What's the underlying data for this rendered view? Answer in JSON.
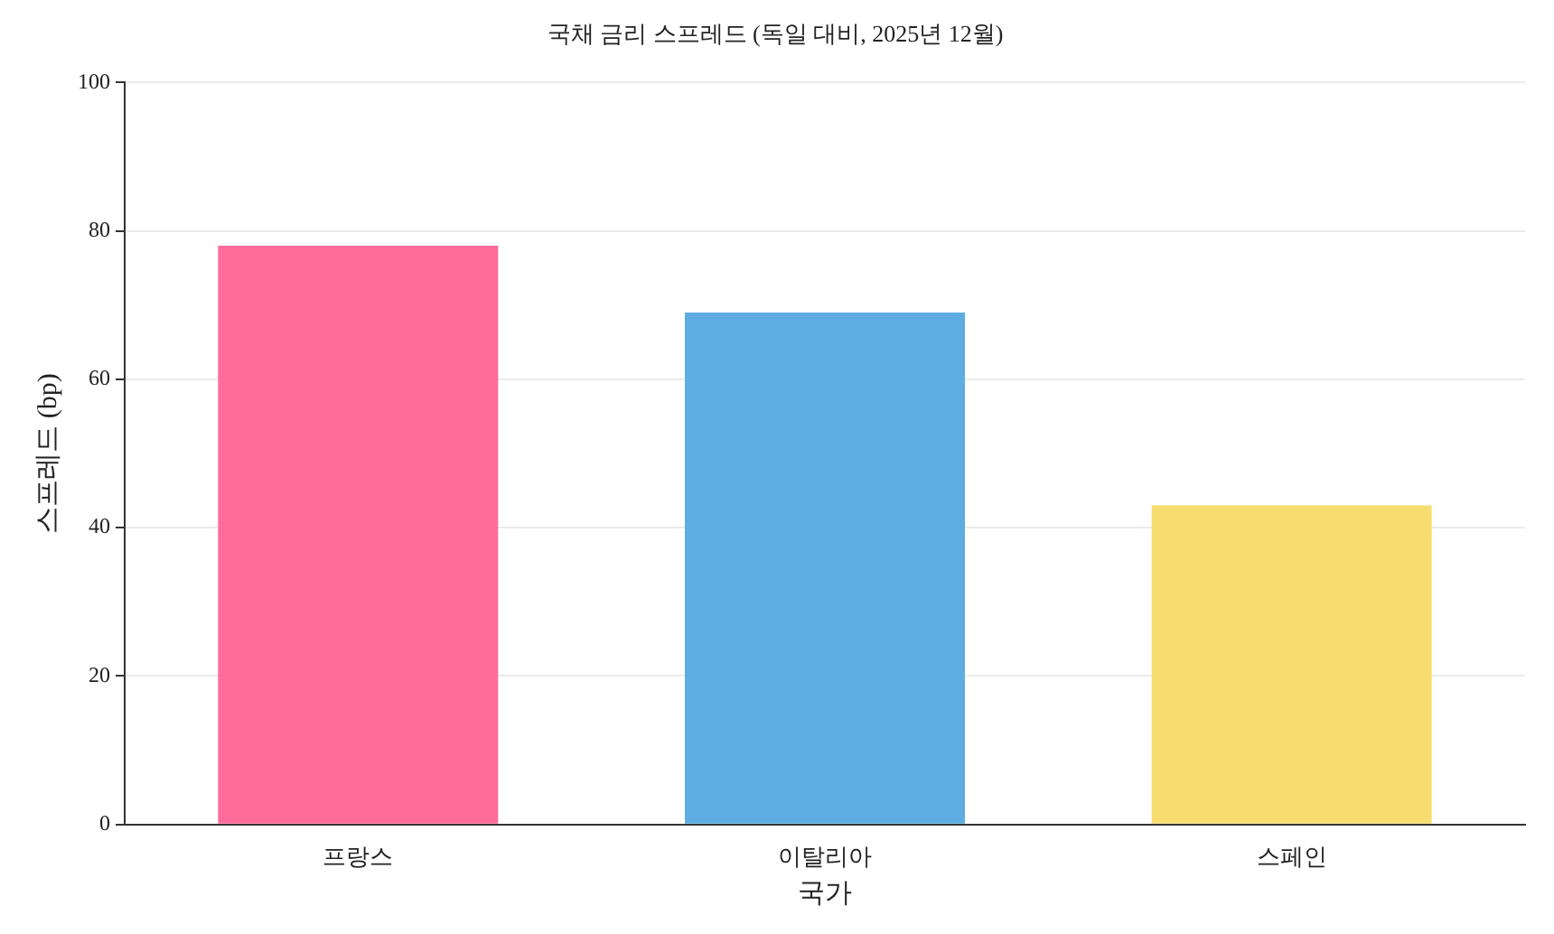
{
  "chart_data": {
    "type": "bar",
    "title": "국채 금리 스프레드 (독일 대비, 2025년 12월)",
    "xlabel": "국가",
    "ylabel": "스프레드 (bp)",
    "categories": [
      "프랑스",
      "이탈리아",
      "스페인"
    ],
    "values": [
      78,
      69,
      43
    ],
    "colors": [
      "#ff6b9a",
      "#5dade2",
      "#f7dc6f"
    ],
    "ylim": [
      0,
      100
    ],
    "yticks": [
      0,
      20,
      40,
      60,
      80,
      100
    ],
    "grid": "y",
    "legend": false
  }
}
